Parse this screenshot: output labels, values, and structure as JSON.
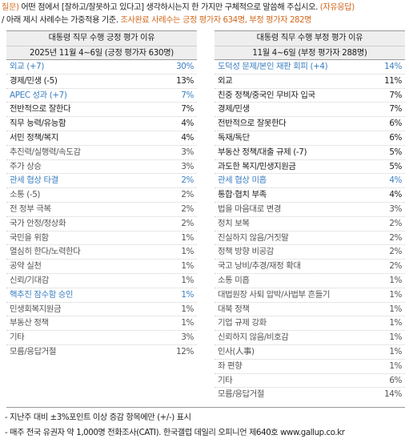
{
  "header": {
    "q_prefix": "질문)",
    "q_text": " 어떤 점에서 [잘하고/잘못하고 있다고] 생각하시는지 한 가지만 구체적으로 말씀해 주십시오. ",
    "q_suffix": "(자유응답)",
    "note_text": "/ 아래 제시 사례수는 가중적용 기준. ",
    "note_highlight": "조사완료 사례수는 긍정 평가자 634명, 부정 평가자 282명"
  },
  "positive": {
    "title": "대통령 직무 수행 긍정 평가 이유",
    "subtitle": "2025년 11월 4~6일 (긍정 평가자 630명)",
    "rows": [
      {
        "label": "외교 (+7)",
        "value": "30%",
        "style": "blue"
      },
      {
        "label": "경제/민생 (-5)",
        "value": "13%",
        "style": "bold"
      },
      {
        "label": "APEC 성과 (+7)",
        "value": "7%",
        "style": "blue"
      },
      {
        "label": "전반적으로 잘한다",
        "value": "7%",
        "style": "bold"
      },
      {
        "label": "직무 능력/유능함",
        "value": "4%",
        "style": "bold"
      },
      {
        "label": "서민 정책/복지",
        "value": "4%",
        "style": "bold"
      },
      {
        "label": "추진력/실행력/속도감",
        "value": "3%",
        "style": "gray"
      },
      {
        "label": "주가 상승",
        "value": "3%",
        "style": "gray"
      },
      {
        "label": "관세 협상 타결",
        "value": "2%",
        "style": "blue"
      },
      {
        "label": "소통 (-5)",
        "value": "2%",
        "style": "gray"
      },
      {
        "label": "전 정부 극복",
        "value": "2%",
        "style": "gray"
      },
      {
        "label": "국가 안정/정상화",
        "value": "2%",
        "style": "gray"
      },
      {
        "label": "국민을 위함",
        "value": "1%",
        "style": "gray"
      },
      {
        "label": "열심히 한다/노력한다",
        "value": "1%",
        "style": "gray"
      },
      {
        "label": "공약 실천",
        "value": "1%",
        "style": "gray"
      },
      {
        "label": "신뢰/기대감",
        "value": "1%",
        "style": "gray"
      },
      {
        "label": "핵추진 잠수함 승인",
        "value": "1%",
        "style": "blue"
      },
      {
        "label": "민생회복지원금",
        "value": "1%",
        "style": "gray"
      },
      {
        "label": "부동산 정책",
        "value": "1%",
        "style": "gray"
      },
      {
        "label": "기타",
        "value": "3%",
        "style": "gray"
      },
      {
        "label": "모름/응답거절",
        "value": "12%",
        "style": "gray"
      }
    ]
  },
  "negative": {
    "title": "대통령 직무 수행 부정 평가 이유",
    "subtitle": "11월 4~6일 (부정 평가자 288명)",
    "rows": [
      {
        "label": "도덕성 문제/본인 재판 회피 (+4)",
        "value": "14%",
        "style": "blue"
      },
      {
        "label": "외교",
        "value": "11%",
        "style": "bold"
      },
      {
        "label": "친중 정책/중국인 무비자 입국",
        "value": "7%",
        "style": "bold"
      },
      {
        "label": "경제/민생",
        "value": "7%",
        "style": "bold"
      },
      {
        "label": "전반적으로 잘못한다",
        "value": "6%",
        "style": "bold"
      },
      {
        "label": "독재/독단",
        "value": "6%",
        "style": "bold"
      },
      {
        "label": "부동산 정책/대출 규제 (-7)",
        "value": "5%",
        "style": "bold"
      },
      {
        "label": "과도한 복지/민생지원금",
        "value": "5%",
        "style": "bold"
      },
      {
        "label": "관세 협상 미흡",
        "value": "4%",
        "style": "blue"
      },
      {
        "label": "통합·협치 부족",
        "value": "4%",
        "style": "bold"
      },
      {
        "label": "법을 마음대로 변경",
        "value": "3%",
        "style": "gray"
      },
      {
        "label": "정치 보복",
        "value": "2%",
        "style": "gray"
      },
      {
        "label": "진실하지 않음/거짓말",
        "value": "2%",
        "style": "gray"
      },
      {
        "label": "정책 방향 비공감",
        "value": "2%",
        "style": "gray"
      },
      {
        "label": "국고 낭비/추경/재정 확대",
        "value": "2%",
        "style": "gray"
      },
      {
        "label": "소통 미흡",
        "value": "1%",
        "style": "gray"
      },
      {
        "label": "대법원장 사퇴 압박/사법부 흔들기",
        "value": "1%",
        "style": "gray"
      },
      {
        "label": "대북 정책",
        "value": "1%",
        "style": "gray"
      },
      {
        "label": "기업 규제 강화",
        "value": "1%",
        "style": "gray"
      },
      {
        "label": "신뢰하지 않음/비호감",
        "value": "1%",
        "style": "gray"
      },
      {
        "label": "인사(人事)",
        "value": "1%",
        "style": "gray"
      },
      {
        "label": "좌 편향",
        "value": "1%",
        "style": "gray"
      },
      {
        "label": "기타",
        "value": "6%",
        "style": "gray"
      },
      {
        "label": "모름/응답거절",
        "value": "14%",
        "style": "gray"
      }
    ]
  },
  "footer": {
    "line1": "- 지난주 대비 ±3%포인트 이상 증감 항목에만 (+/-) 표시",
    "line2": "- 매주 전국 유권자 약 1,000명 전화조사(CATI). 한국갤럽 데일리 오피니언 제640호 www.gallup.co.kr"
  }
}
